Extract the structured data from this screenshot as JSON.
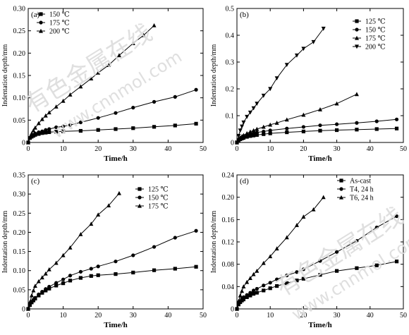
{
  "watermarks": [
    "有色金属在线",
    "www.cnnmol.com",
    "有色金属在线",
    "www.cnnmol.com"
  ],
  "chart_data": [
    {
      "type": "line",
      "panel_label": "(a)",
      "xlabel": "Time/h",
      "ylabel": "Indentation depth/mm",
      "xlim": [
        0,
        50
      ],
      "ylim": [
        0,
        0.3
      ],
      "xticks": [
        "0",
        "10",
        "20",
        "30",
        "40",
        "50"
      ],
      "yticks": [
        "0",
        "0.05",
        "0.10",
        "0.15",
        "0.20",
        "0.25",
        "0.30"
      ],
      "legend_position": "top-left",
      "series": [
        {
          "name": "150 ℃",
          "marker": "square",
          "x": [
            0,
            0.5,
            1,
            1.5,
            2,
            3,
            4,
            5,
            6,
            8,
            10,
            15,
            20,
            25,
            30,
            36,
            42,
            48
          ],
          "y": [
            0,
            0.01,
            0.013,
            0.015,
            0.017,
            0.019,
            0.021,
            0.022,
            0.023,
            0.024,
            0.025,
            0.026,
            0.028,
            0.03,
            0.032,
            0.035,
            0.038,
            0.042
          ]
        },
        {
          "name": "175 ℃",
          "marker": "circle",
          "x": [
            0,
            0.5,
            1,
            1.5,
            2,
            3,
            4,
            5,
            6,
            8,
            10,
            12,
            15,
            20,
            25,
            30,
            36,
            42,
            48
          ],
          "y": [
            0,
            0.01,
            0.014,
            0.017,
            0.02,
            0.023,
            0.025,
            0.028,
            0.03,
            0.034,
            0.036,
            0.039,
            0.045,
            0.055,
            0.066,
            0.078,
            0.091,
            0.102,
            0.118
          ]
        },
        {
          "name": "200 ℃",
          "marker": "triangle",
          "x": [
            0,
            0.5,
            1,
            1.5,
            2,
            3,
            4,
            5,
            6,
            8,
            10,
            12,
            15,
            18,
            20,
            23,
            26,
            30,
            33,
            36
          ],
          "y": [
            0,
            0.012,
            0.02,
            0.027,
            0.033,
            0.043,
            0.052,
            0.06,
            0.067,
            0.08,
            0.093,
            0.107,
            0.125,
            0.143,
            0.156,
            0.173,
            0.195,
            0.222,
            0.24,
            0.262
          ]
        }
      ]
    },
    {
      "type": "line",
      "panel_label": "(b)",
      "xlabel": "Time/h",
      "ylabel": "Indentation depth/mm",
      "xlim": [
        0,
        50
      ],
      "ylim": [
        0,
        0.5
      ],
      "xticks": [
        "0",
        "10",
        "20",
        "30",
        "40",
        "50"
      ],
      "yticks": [
        "0",
        "0.1",
        "0.2",
        "0.3",
        "0.4",
        "0.5"
      ],
      "legend_position": "right",
      "series": [
        {
          "name": "125 ℃",
          "marker": "square",
          "x": [
            0,
            0.5,
            1,
            1.5,
            2,
            3,
            4,
            5,
            6,
            8,
            10,
            15,
            20,
            25,
            30,
            36,
            42,
            48
          ],
          "y": [
            0,
            0.008,
            0.012,
            0.015,
            0.017,
            0.021,
            0.024,
            0.026,
            0.028,
            0.031,
            0.034,
            0.038,
            0.041,
            0.044,
            0.046,
            0.048,
            0.05,
            0.052
          ]
        },
        {
          "name": "150 ℃",
          "marker": "circle",
          "x": [
            0,
            0.5,
            1,
            1.5,
            2,
            3,
            4,
            5,
            6,
            8,
            10,
            15,
            20,
            25,
            30,
            36,
            42,
            48
          ],
          "y": [
            0,
            0.01,
            0.015,
            0.019,
            0.022,
            0.027,
            0.031,
            0.034,
            0.037,
            0.041,
            0.045,
            0.052,
            0.058,
            0.064,
            0.068,
            0.073,
            0.079,
            0.086
          ]
        },
        {
          "name": "175 ℃",
          "marker": "triangle",
          "x": [
            0,
            0.5,
            1,
            1.5,
            2,
            3,
            4,
            5,
            6,
            8,
            10,
            12,
            15,
            20,
            25,
            30,
            36
          ],
          "y": [
            0,
            0.012,
            0.018,
            0.023,
            0.027,
            0.034,
            0.04,
            0.045,
            0.05,
            0.058,
            0.066,
            0.073,
            0.085,
            0.103,
            0.123,
            0.145,
            0.18
          ]
        },
        {
          "name": "200 ℃",
          "marker": "tri-down",
          "x": [
            0,
            0.5,
            1,
            1.5,
            2,
            3,
            4,
            5,
            6,
            8,
            10,
            12,
            15,
            18,
            20,
            23,
            26
          ],
          "y": [
            0,
            0.025,
            0.045,
            0.06,
            0.075,
            0.096,
            0.112,
            0.128,
            0.145,
            0.175,
            0.2,
            0.24,
            0.29,
            0.325,
            0.35,
            0.375,
            0.425
          ]
        }
      ]
    },
    {
      "type": "line",
      "panel_label": "(c)",
      "xlabel": "Time/h",
      "ylabel": "Indentation depth/mm",
      "xlim": [
        0,
        50
      ],
      "ylim": [
        0,
        0.35
      ],
      "xticks": [
        "0",
        "10",
        "20",
        "30",
        "40",
        "50"
      ],
      "yticks": [
        "0",
        "0.05",
        "0.10",
        "0.15",
        "0.20",
        "0.25",
        "0.30",
        "0.35"
      ],
      "legend_position": "top-right",
      "series": [
        {
          "name": "125 ℃",
          "marker": "square",
          "x": [
            0,
            0.5,
            1,
            1.5,
            2,
            3,
            4,
            5,
            6,
            8,
            10,
            12,
            15,
            18,
            20,
            25,
            30,
            36,
            42,
            48
          ],
          "y": [
            0,
            0.01,
            0.017,
            0.022,
            0.027,
            0.035,
            0.042,
            0.048,
            0.053,
            0.061,
            0.067,
            0.074,
            0.081,
            0.086,
            0.088,
            0.091,
            0.095,
            0.101,
            0.105,
            0.11
          ]
        },
        {
          "name": "150 ℃",
          "marker": "circle",
          "x": [
            0,
            0.5,
            1,
            1.5,
            2,
            3,
            4,
            5,
            6,
            8,
            10,
            12,
            15,
            18,
            20,
            25,
            30,
            36,
            42,
            48
          ],
          "y": [
            0,
            0.012,
            0.019,
            0.024,
            0.029,
            0.038,
            0.045,
            0.052,
            0.058,
            0.068,
            0.077,
            0.087,
            0.097,
            0.105,
            0.111,
            0.124,
            0.14,
            0.162,
            0.186,
            0.204
          ]
        },
        {
          "name": "175 ℃",
          "marker": "triangle",
          "x": [
            0,
            0.5,
            1,
            1.5,
            2,
            3,
            4,
            5,
            6,
            8,
            10,
            12,
            15,
            18,
            20,
            23,
            26
          ],
          "y": [
            0,
            0.018,
            0.035,
            0.048,
            0.06,
            0.072,
            0.082,
            0.092,
            0.103,
            0.12,
            0.14,
            0.16,
            0.195,
            0.222,
            0.246,
            0.27,
            0.302
          ]
        }
      ]
    },
    {
      "type": "line",
      "panel_label": "(d)",
      "xlabel": "Time/h",
      "ylabel": "Indentation depth/mm",
      "xlim": [
        0,
        50
      ],
      "ylim": [
        0,
        0.24
      ],
      "xticks": [
        "0",
        "10",
        "20",
        "30",
        "40",
        "50"
      ],
      "yticks": [
        "0",
        "0.04",
        "0.08",
        "0.12",
        "0.16",
        "0.20",
        "0.24"
      ],
      "legend_position": "top-right",
      "series": [
        {
          "name": "As-cast",
          "marker": "square",
          "x": [
            0,
            0.5,
            1,
            1.5,
            2,
            3,
            4,
            5,
            6,
            8,
            10,
            12,
            15,
            18,
            20,
            25,
            30,
            36,
            42,
            48
          ],
          "y": [
            0,
            0.008,
            0.012,
            0.015,
            0.017,
            0.021,
            0.024,
            0.027,
            0.029,
            0.033,
            0.037,
            0.041,
            0.046,
            0.051,
            0.054,
            0.061,
            0.068,
            0.073,
            0.078,
            0.085
          ]
        },
        {
          "name": "T4, 24 h",
          "marker": "circle",
          "x": [
            0,
            0.5,
            1,
            1.5,
            2,
            3,
            4,
            5,
            6,
            8,
            10,
            12,
            15,
            18,
            20,
            25,
            30,
            36,
            42,
            48
          ],
          "y": [
            0,
            0.01,
            0.014,
            0.018,
            0.021,
            0.025,
            0.029,
            0.033,
            0.036,
            0.042,
            0.047,
            0.053,
            0.06,
            0.066,
            0.071,
            0.086,
            0.102,
            0.122,
            0.146,
            0.166
          ]
        },
        {
          "name": "T6, 24 h",
          "marker": "triangle",
          "x": [
            0,
            0.5,
            1,
            1.5,
            2,
            3,
            4,
            5,
            6,
            8,
            10,
            12,
            15,
            18,
            20,
            23,
            26
          ],
          "y": [
            0,
            0.014,
            0.024,
            0.032,
            0.04,
            0.048,
            0.055,
            0.062,
            0.068,
            0.082,
            0.094,
            0.108,
            0.128,
            0.15,
            0.165,
            0.178,
            0.2
          ]
        }
      ]
    }
  ]
}
